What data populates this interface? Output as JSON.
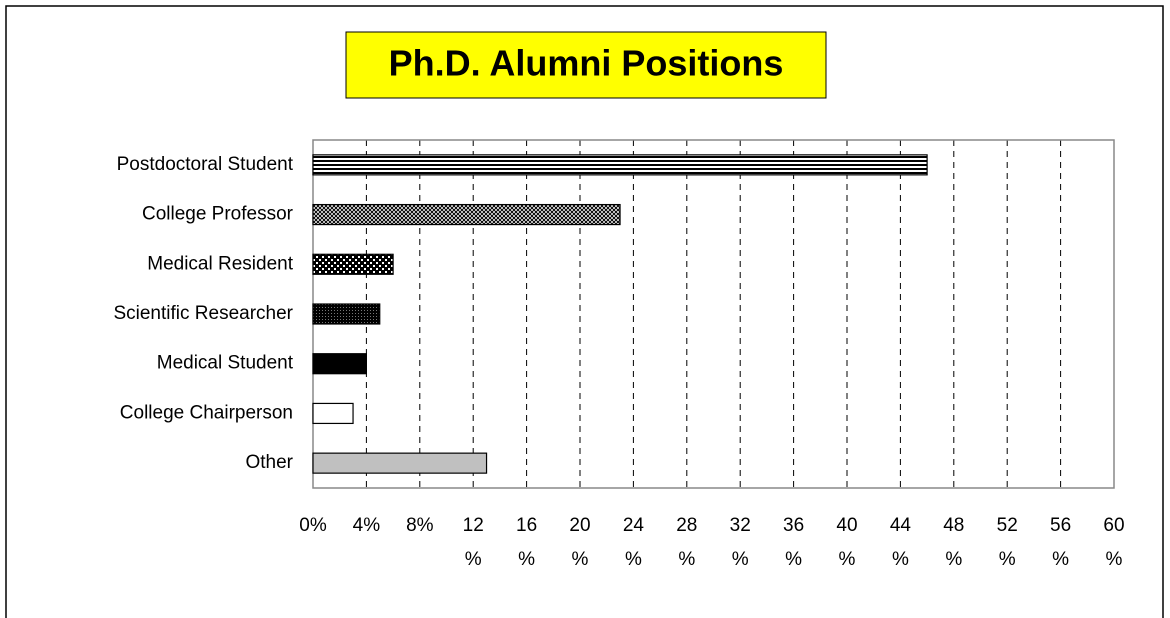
{
  "chart_data": {
    "type": "hbar",
    "title": "Ph.D. Alumni Positions",
    "categories": [
      "Postdoctoral Student",
      "College Professor",
      "Medical Resident",
      "Scientific Researcher",
      "Medical Student",
      "College Chairperson",
      "Other"
    ],
    "values": [
      46,
      23,
      6,
      5,
      4,
      3,
      13
    ],
    "xlim": [
      0,
      60
    ],
    "xticks": [
      {
        "value": 0,
        "label": "0%"
      },
      {
        "value": 4,
        "label": "4%"
      },
      {
        "value": 8,
        "label": "8%"
      },
      {
        "value": 12,
        "label": "12 %"
      },
      {
        "value": 16,
        "label": "16 %"
      },
      {
        "value": 20,
        "label": "20 %"
      },
      {
        "value": 24,
        "label": "24 %"
      },
      {
        "value": 28,
        "label": "28 %"
      },
      {
        "value": 32,
        "label": "32 %"
      },
      {
        "value": 36,
        "label": "36 %"
      },
      {
        "value": 40,
        "label": "40 %"
      },
      {
        "value": 44,
        "label": "44 %"
      },
      {
        "value": 48,
        "label": "48 %"
      },
      {
        "value": 52,
        "label": "52 %"
      },
      {
        "value": 56,
        "label": "56 %"
      },
      {
        "value": 60,
        "label": "60 %"
      }
    ],
    "grid": true
  }
}
